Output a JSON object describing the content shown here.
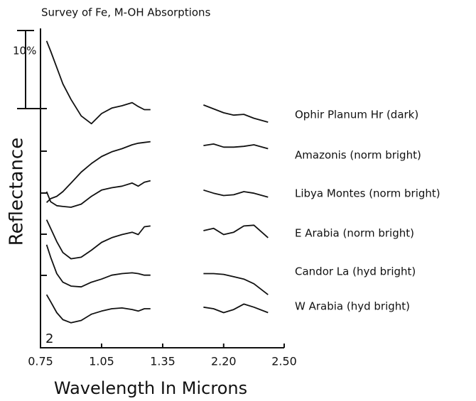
{
  "chart_data": {
    "type": "line",
    "title": "Survey of Fe, M-OH Absorptions",
    "xlabel": "Wavelength In Microns",
    "ylabel": "Reflectance",
    "panel_label": "2",
    "scale_bar": {
      "value": 10,
      "label": "10%"
    },
    "xlim": [
      0.75,
      2.5
    ],
    "x_break": [
      1.35,
      2.0
    ],
    "xticks": [
      0.75,
      1.05,
      1.35,
      {
        "value": 2.2,
        "label": "2.20"
      },
      {
        "value": 2.5,
        "label": "2.50"
      }
    ],
    "ylim": [
      0,
      41
    ],
    "color": "#111111",
    "series": [
      {
        "name": "Ophir Planum Hr (dark)",
        "x": [
          0.78,
          0.8,
          0.83,
          0.86,
          0.9,
          0.95,
          1.0,
          1.05,
          1.1,
          1.15,
          1.2,
          1.23,
          1.26,
          1.29,
          null,
          2.1,
          2.15,
          2.2,
          2.25,
          2.3,
          2.35,
          2.42
        ],
        "values": [
          39.3,
          38.0,
          35.9,
          33.8,
          31.8,
          29.7,
          28.7,
          30.0,
          30.7,
          31.0,
          31.4,
          30.9,
          30.5,
          30.5,
          null,
          31.1,
          30.6,
          30.1,
          29.8,
          29.9,
          29.4,
          28.9
        ]
      },
      {
        "name": "Amazonis (norm bright)",
        "x": [
          0.78,
          0.8,
          0.83,
          0.86,
          0.9,
          0.95,
          1.0,
          1.05,
          1.1,
          1.15,
          1.2,
          1.23,
          1.26,
          1.29,
          null,
          2.1,
          2.15,
          2.2,
          2.25,
          2.3,
          2.35,
          2.42
        ],
        "values": [
          18.6,
          19.1,
          19.4,
          20.0,
          21.1,
          22.5,
          23.6,
          24.5,
          25.1,
          25.5,
          26.0,
          26.2,
          26.3,
          26.4,
          null,
          25.9,
          26.1,
          25.7,
          25.7,
          25.8,
          26.0,
          25.5
        ]
      },
      {
        "name": "Libya Montes (norm bright)",
        "x": [
          0.78,
          0.8,
          0.83,
          0.86,
          0.9,
          0.95,
          1.0,
          1.05,
          1.1,
          1.15,
          1.2,
          1.23,
          1.26,
          1.29,
          null,
          2.1,
          2.15,
          2.2,
          2.25,
          2.3,
          2.35,
          2.42
        ],
        "values": [
          20.0,
          18.7,
          18.2,
          18.1,
          18.0,
          18.4,
          19.4,
          20.2,
          20.5,
          20.7,
          21.1,
          20.7,
          21.2,
          21.4,
          null,
          20.2,
          19.8,
          19.5,
          19.6,
          20.0,
          19.8,
          19.3
        ]
      },
      {
        "name": "E Arabia (norm bright)",
        "x": [
          0.78,
          0.8,
          0.83,
          0.86,
          0.9,
          0.95,
          1.0,
          1.05,
          1.1,
          1.15,
          1.2,
          1.23,
          1.26,
          1.29,
          null,
          2.1,
          2.15,
          2.2,
          2.25,
          2.3,
          2.35,
          2.42
        ],
        "values": [
          16.4,
          15.3,
          13.6,
          12.2,
          11.4,
          11.6,
          12.5,
          13.5,
          14.1,
          14.5,
          14.8,
          14.5,
          15.5,
          15.6,
          null,
          15.0,
          15.3,
          14.5,
          14.8,
          15.6,
          15.7,
          14.1
        ]
      },
      {
        "name": "Candor La (hyd bright)",
        "x": [
          0.78,
          0.8,
          0.83,
          0.86,
          0.9,
          0.95,
          1.0,
          1.05,
          1.1,
          1.15,
          1.2,
          1.23,
          1.26,
          1.29,
          null,
          2.1,
          2.15,
          2.2,
          2.25,
          2.3,
          2.35,
          2.42
        ],
        "values": [
          13.2,
          11.6,
          9.5,
          8.4,
          7.9,
          7.8,
          8.4,
          8.8,
          9.3,
          9.5,
          9.6,
          9.5,
          9.3,
          9.3,
          null,
          9.5,
          9.5,
          9.4,
          9.1,
          8.8,
          8.2,
          6.8
        ]
      },
      {
        "name": "W Arabia (hyd bright)",
        "x": [
          0.78,
          0.8,
          0.83,
          0.86,
          0.9,
          0.95,
          1.0,
          1.05,
          1.1,
          1.15,
          1.2,
          1.23,
          1.26,
          1.29,
          null,
          2.1,
          2.15,
          2.2,
          2.25,
          2.3,
          2.35,
          2.42
        ],
        "values": [
          6.8,
          5.9,
          4.5,
          3.6,
          3.2,
          3.5,
          4.3,
          4.7,
          5.0,
          5.1,
          4.9,
          4.7,
          5.0,
          5.0,
          null,
          5.2,
          5.0,
          4.5,
          4.9,
          5.6,
          5.2,
          4.5
        ]
      }
    ]
  }
}
